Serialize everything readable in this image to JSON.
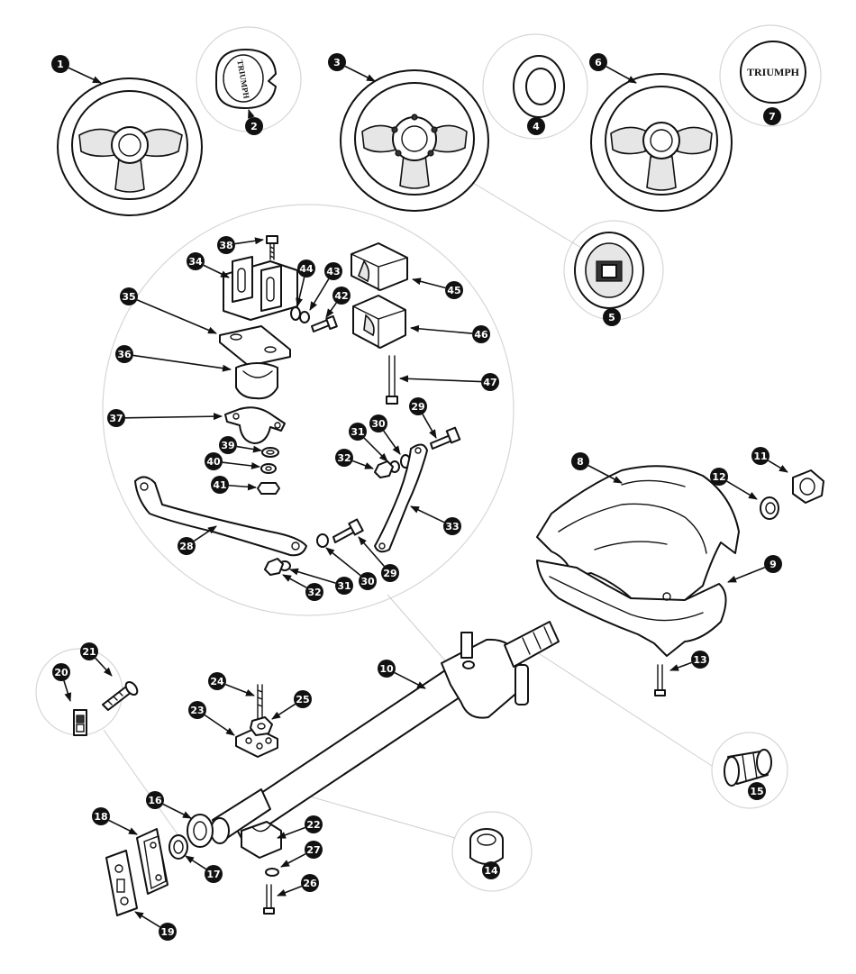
{
  "diagram": {
    "badge_text": "TRIUMPH",
    "callouts": [
      {
        "id": "1",
        "label": "1"
      },
      {
        "id": "2",
        "label": "2"
      },
      {
        "id": "3",
        "label": "3"
      },
      {
        "id": "4",
        "label": "4"
      },
      {
        "id": "5",
        "label": "5"
      },
      {
        "id": "6",
        "label": "6"
      },
      {
        "id": "7",
        "label": "7"
      },
      {
        "id": "8",
        "label": "8"
      },
      {
        "id": "9",
        "label": "9"
      },
      {
        "id": "10",
        "label": "10"
      },
      {
        "id": "11",
        "label": "11"
      },
      {
        "id": "12",
        "label": "12"
      },
      {
        "id": "13",
        "label": "13"
      },
      {
        "id": "14",
        "label": "14"
      },
      {
        "id": "15",
        "label": "15"
      },
      {
        "id": "16",
        "label": "16"
      },
      {
        "id": "17",
        "label": "17"
      },
      {
        "id": "18",
        "label": "18"
      },
      {
        "id": "19",
        "label": "19"
      },
      {
        "id": "20",
        "label": "20"
      },
      {
        "id": "21",
        "label": "21"
      },
      {
        "id": "22",
        "label": "22"
      },
      {
        "id": "23",
        "label": "23"
      },
      {
        "id": "24",
        "label": "24"
      },
      {
        "id": "25",
        "label": "25"
      },
      {
        "id": "26",
        "label": "26"
      },
      {
        "id": "27",
        "label": "27"
      },
      {
        "id": "28",
        "label": "28"
      },
      {
        "id": "29a",
        "label": "29"
      },
      {
        "id": "29b",
        "label": "29"
      },
      {
        "id": "30a",
        "label": "30"
      },
      {
        "id": "30b",
        "label": "30"
      },
      {
        "id": "31a",
        "label": "31"
      },
      {
        "id": "31b",
        "label": "31"
      },
      {
        "id": "32a",
        "label": "32"
      },
      {
        "id": "32b",
        "label": "32"
      },
      {
        "id": "33",
        "label": "33"
      },
      {
        "id": "34",
        "label": "34"
      },
      {
        "id": "35",
        "label": "35"
      },
      {
        "id": "36",
        "label": "36"
      },
      {
        "id": "37",
        "label": "37"
      },
      {
        "id": "38",
        "label": "38"
      },
      {
        "id": "39",
        "label": "39"
      },
      {
        "id": "40",
        "label": "40"
      },
      {
        "id": "41",
        "label": "41"
      },
      {
        "id": "42",
        "label": "42"
      },
      {
        "id": "43",
        "label": "43"
      },
      {
        "id": "44",
        "label": "44"
      },
      {
        "id": "45",
        "label": "45"
      },
      {
        "id": "46",
        "label": "46"
      },
      {
        "id": "47",
        "label": "47"
      }
    ]
  }
}
